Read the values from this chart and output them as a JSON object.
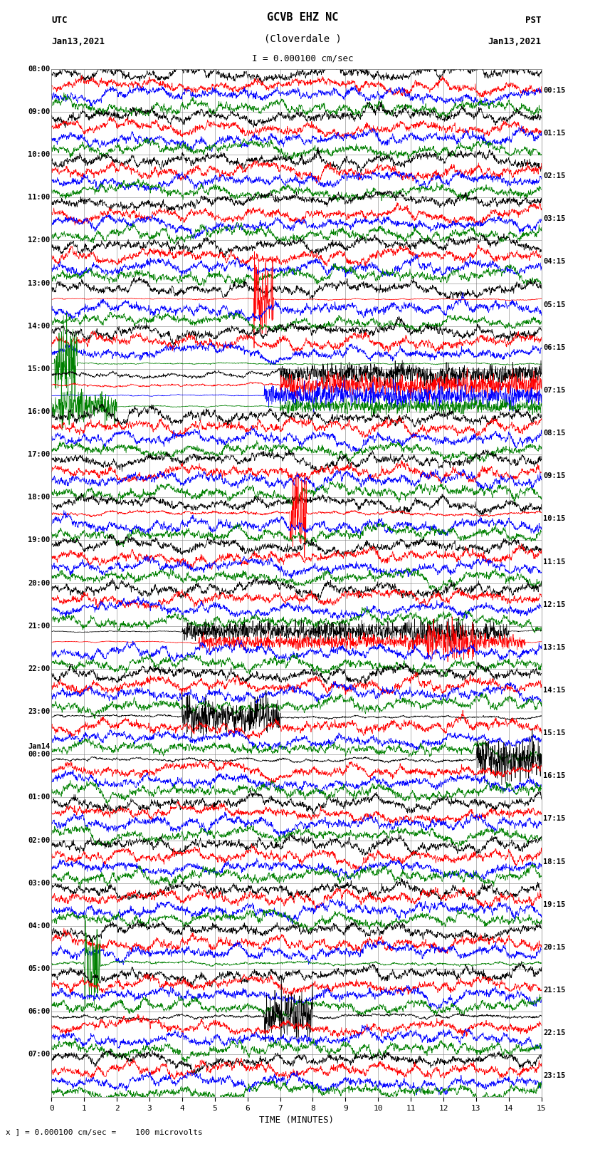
{
  "title_line1": "GCVB EHZ NC",
  "title_line2": "(Cloverdale )",
  "scale_text": "I = 0.000100 cm/sec",
  "bottom_text": "x ] = 0.000100 cm/sec =    100 microvolts",
  "utc_label": "UTC",
  "utc_date": "Jan13,2021",
  "pst_label": "PST",
  "pst_date": "Jan13,2021",
  "xlabel": "TIME (MINUTES)",
  "bg_color": "#ffffff",
  "grid_color": "#808080",
  "trace_colors_order": [
    "black",
    "red",
    "blue",
    "green"
  ],
  "num_rows": 24,
  "minutes_per_row": 15,
  "left_labels": [
    "08:00",
    "09:00",
    "10:00",
    "11:00",
    "12:00",
    "13:00",
    "14:00",
    "15:00",
    "16:00",
    "17:00",
    "18:00",
    "19:00",
    "20:00",
    "21:00",
    "22:00",
    "23:00",
    "Jan14\n00:00",
    "01:00",
    "02:00",
    "03:00",
    "04:00",
    "05:00",
    "06:00",
    "07:00"
  ],
  "right_labels": [
    "00:15",
    "01:15",
    "02:15",
    "03:15",
    "04:15",
    "05:15",
    "06:15",
    "07:15",
    "08:15",
    "09:15",
    "10:15",
    "11:15",
    "12:15",
    "13:15",
    "14:15",
    "15:15",
    "16:15",
    "17:15",
    "18:15",
    "19:15",
    "20:15",
    "21:15",
    "22:15",
    "23:15"
  ],
  "figsize": [
    8.5,
    16.13
  ],
  "dpi": 100,
  "seed": 42
}
